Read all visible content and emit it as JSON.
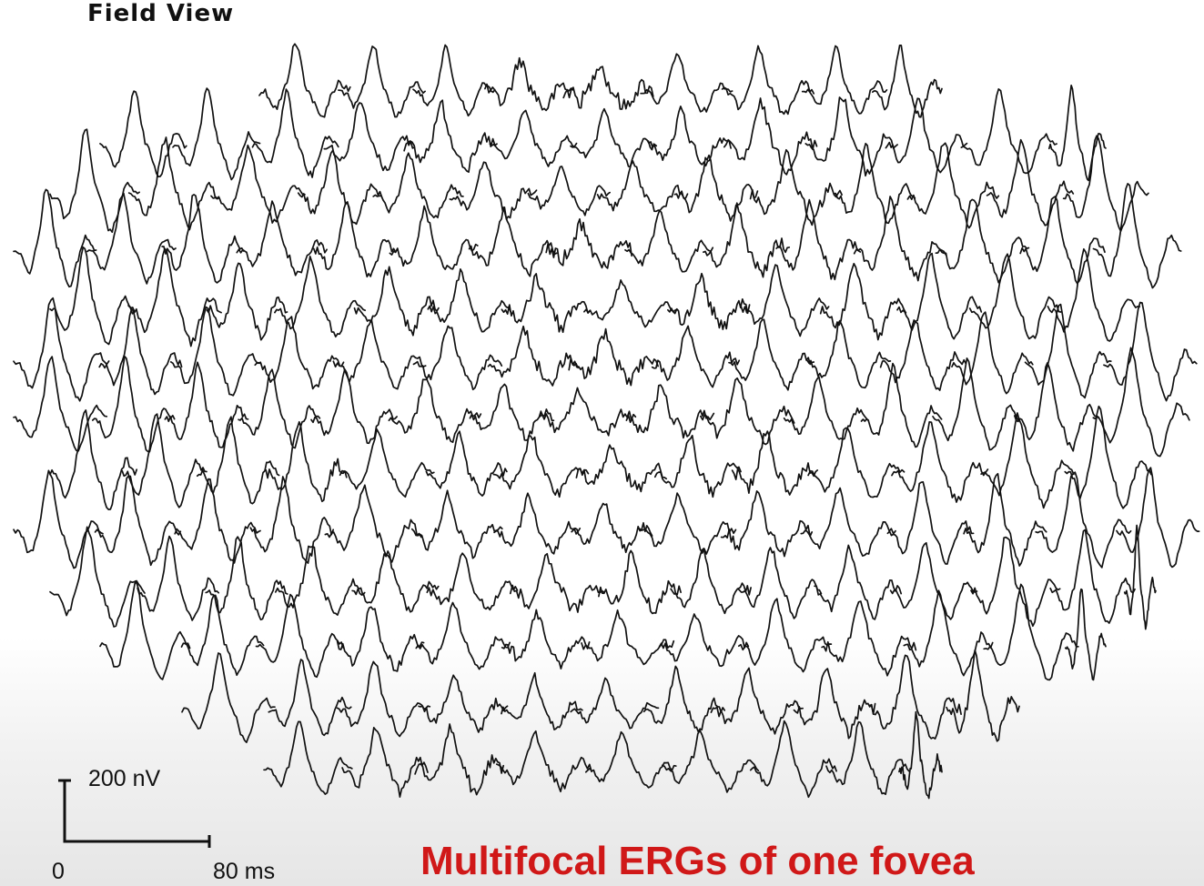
{
  "figure": {
    "header": "Field View",
    "scale_bar": {
      "amplitude_label": "200 nV",
      "time_start_label": "0",
      "time_end_label": "80 ms"
    },
    "caption": "Multifocal ERGs of one fovea",
    "colors": {
      "trace": "#111111",
      "caption": "#d01818"
    }
  }
}
